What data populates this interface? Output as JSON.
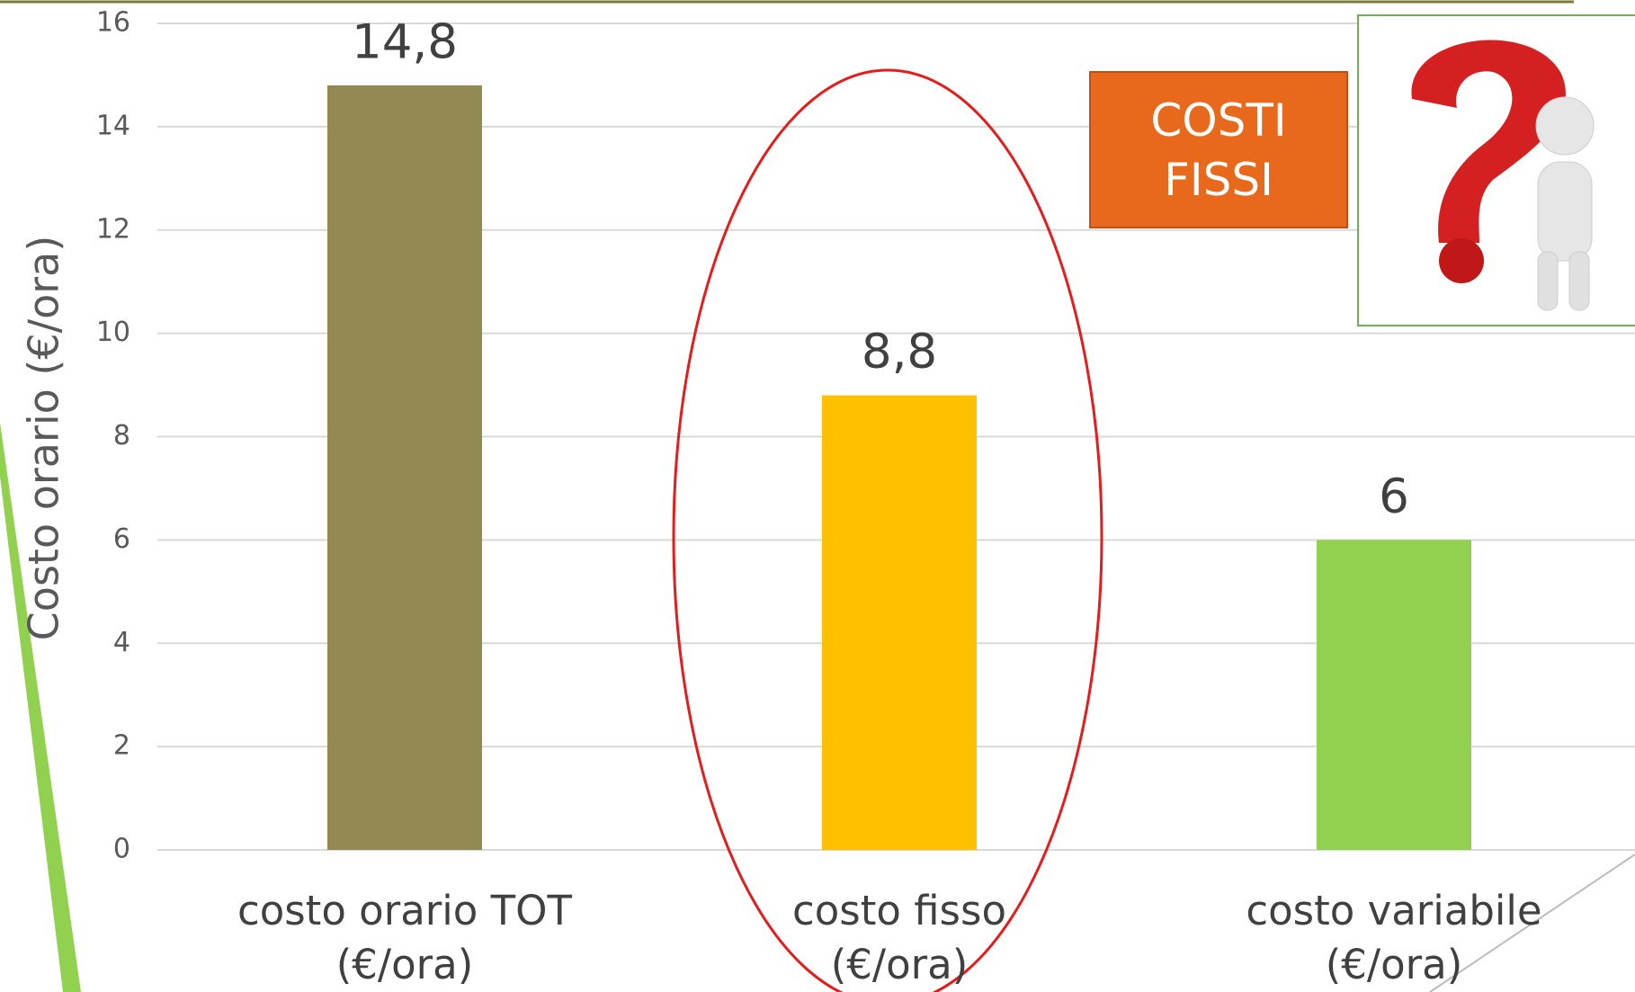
{
  "chart_data": {
    "type": "bar",
    "y_label": "Costo orario (€/ora)",
    "categories": [
      "costo orario TOT\n(€/ora)",
      "costo fisso\n(€/ora)",
      "costo variabile\n(€/ora)"
    ],
    "values": [
      14.8,
      8.8,
      6
    ],
    "value_labels": [
      "14,8",
      "8,8",
      "6"
    ],
    "colors": [
      "#938953",
      "#ffc000",
      "#92d050"
    ],
    "ylim": [
      0,
      16
    ],
    "yticks": [
      0,
      2,
      4,
      6,
      8,
      10,
      12,
      14,
      16
    ],
    "grid": true,
    "annotation": "COSTI\nFISSI"
  }
}
